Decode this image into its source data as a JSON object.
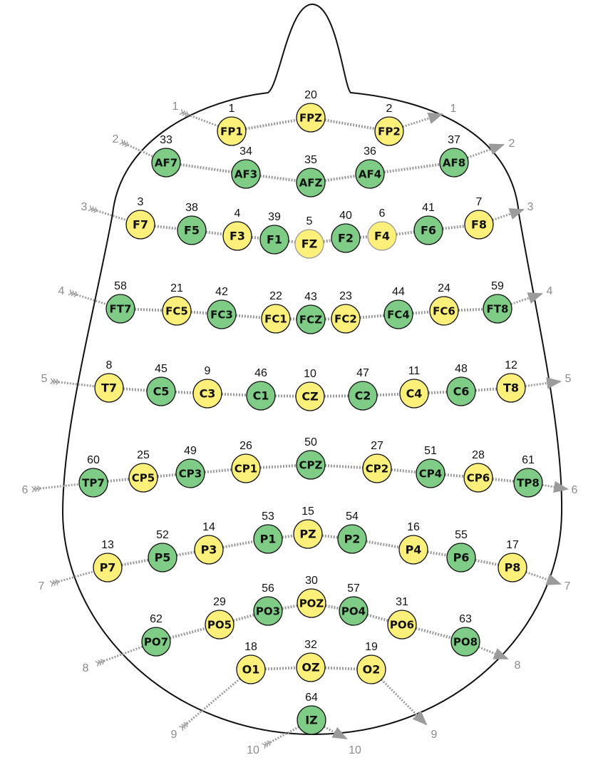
{
  "colors": {
    "yellow_fill": "#fdf07a",
    "green_fill": "#7fcc86",
    "outline": "#111111",
    "route_line": "#9b9b9b",
    "row_label": "#8c8c8c",
    "muted_outline": "#9b9b9b"
  },
  "electrodes": [
    {
      "label": "FP1",
      "number": "1",
      "color": "yellow"
    },
    {
      "label": "FPZ",
      "number": "20",
      "color": "yellow"
    },
    {
      "label": "FP2",
      "number": "2",
      "color": "yellow"
    },
    {
      "label": "AF7",
      "number": "33",
      "color": "green"
    },
    {
      "label": "AF3",
      "number": "34",
      "color": "green"
    },
    {
      "label": "AFZ",
      "number": "35",
      "color": "green"
    },
    {
      "label": "AF4",
      "number": "36",
      "color": "green"
    },
    {
      "label": "AF8",
      "number": "37",
      "color": "green"
    },
    {
      "label": "F7",
      "number": "3",
      "color": "yellow"
    },
    {
      "label": "F5",
      "number": "38",
      "color": "green"
    },
    {
      "label": "F3",
      "number": "4",
      "color": "yellow"
    },
    {
      "label": "F1",
      "number": "39",
      "color": "green"
    },
    {
      "label": "FZ",
      "number": "5",
      "color": "yellow",
      "muted": true
    },
    {
      "label": "F2",
      "number": "40",
      "color": "green"
    },
    {
      "label": "F4",
      "number": "6",
      "color": "yellow",
      "muted": true
    },
    {
      "label": "F6",
      "number": "41",
      "color": "green"
    },
    {
      "label": "F8",
      "number": "7",
      "color": "yellow"
    },
    {
      "label": "FT7",
      "number": "58",
      "color": "green"
    },
    {
      "label": "FC5",
      "number": "21",
      "color": "yellow"
    },
    {
      "label": "FC3",
      "number": "42",
      "color": "green"
    },
    {
      "label": "FC1",
      "number": "22",
      "color": "yellow"
    },
    {
      "label": "FCZ",
      "number": "43",
      "color": "green"
    },
    {
      "label": "FC2",
      "number": "23",
      "color": "yellow"
    },
    {
      "label": "FC4",
      "number": "44",
      "color": "green"
    },
    {
      "label": "FC6",
      "number": "24",
      "color": "yellow"
    },
    {
      "label": "FT8",
      "number": "59",
      "color": "green"
    },
    {
      "label": "T7",
      "number": "8",
      "color": "yellow"
    },
    {
      "label": "C5",
      "number": "45",
      "color": "green"
    },
    {
      "label": "C3",
      "number": "9",
      "color": "yellow"
    },
    {
      "label": "C1",
      "number": "46",
      "color": "green"
    },
    {
      "label": "CZ",
      "number": "10",
      "color": "yellow"
    },
    {
      "label": "C2",
      "number": "47",
      "color": "green"
    },
    {
      "label": "C4",
      "number": "11",
      "color": "yellow"
    },
    {
      "label": "C6",
      "number": "48",
      "color": "green"
    },
    {
      "label": "T8",
      "number": "12",
      "color": "yellow"
    },
    {
      "label": "TP7",
      "number": "60",
      "color": "green"
    },
    {
      "label": "CP5",
      "number": "25",
      "color": "yellow"
    },
    {
      "label": "CP3",
      "number": "49",
      "color": "green"
    },
    {
      "label": "CP1",
      "number": "26",
      "color": "yellow"
    },
    {
      "label": "CPZ",
      "number": "50",
      "color": "green"
    },
    {
      "label": "CP2",
      "number": "27",
      "color": "yellow"
    },
    {
      "label": "CP4",
      "number": "51",
      "color": "green"
    },
    {
      "label": "CP6",
      "number": "28",
      "color": "yellow"
    },
    {
      "label": "TP8",
      "number": "61",
      "color": "green"
    },
    {
      "label": "P7",
      "number": "13",
      "color": "yellow"
    },
    {
      "label": "P5",
      "number": "52",
      "color": "green"
    },
    {
      "label": "P3",
      "number": "14",
      "color": "yellow"
    },
    {
      "label": "P1",
      "number": "53",
      "color": "green"
    },
    {
      "label": "PZ",
      "number": "15",
      "color": "yellow"
    },
    {
      "label": "P2",
      "number": "54",
      "color": "green"
    },
    {
      "label": "P4",
      "number": "16",
      "color": "yellow"
    },
    {
      "label": "P6",
      "number": "55",
      "color": "green"
    },
    {
      "label": "P8",
      "number": "17",
      "color": "yellow"
    },
    {
      "label": "PO7",
      "number": "62",
      "color": "green"
    },
    {
      "label": "PO5",
      "number": "29",
      "color": "yellow"
    },
    {
      "label": "PO3",
      "number": "56",
      "color": "green"
    },
    {
      "label": "POZ",
      "number": "30",
      "color": "yellow"
    },
    {
      "label": "PO4",
      "number": "57",
      "color": "green"
    },
    {
      "label": "PO6",
      "number": "31",
      "color": "yellow"
    },
    {
      "label": "PO8",
      "number": "63",
      "color": "green"
    },
    {
      "label": "O1",
      "number": "18",
      "color": "yellow"
    },
    {
      "label": "OZ",
      "number": "32",
      "color": "yellow"
    },
    {
      "label": "O2",
      "number": "19",
      "color": "yellow"
    },
    {
      "label": "IZ",
      "number": "64",
      "color": "green"
    }
  ],
  "rows": [
    {
      "label": "1",
      "electrodes": [
        "FP1",
        "FPZ",
        "FP2"
      ]
    },
    {
      "label": "2",
      "electrodes": [
        "AF7",
        "AF3",
        "AFZ",
        "AF4",
        "AF8"
      ]
    },
    {
      "label": "3",
      "electrodes": [
        "F7",
        "F5",
        "F3",
        "F1",
        "FZ",
        "F2",
        "F4",
        "F6",
        "F8"
      ]
    },
    {
      "label": "4",
      "electrodes": [
        "FT7",
        "FC5",
        "FC3",
        "FC1",
        "FCZ",
        "FC2",
        "FC4",
        "FC6",
        "FT8"
      ]
    },
    {
      "label": "5",
      "electrodes": [
        "T7",
        "C5",
        "C3",
        "C1",
        "CZ",
        "C2",
        "C4",
        "C6",
        "T8"
      ]
    },
    {
      "label": "6",
      "electrodes": [
        "TP7",
        "CP5",
        "CP3",
        "CP1",
        "CPZ",
        "CP2",
        "CP4",
        "CP6",
        "TP8"
      ]
    },
    {
      "label": "7",
      "electrodes": [
        "P7",
        "P5",
        "P3",
        "P1",
        "PZ",
        "P2",
        "P4",
        "P6",
        "P8"
      ]
    },
    {
      "label": "8",
      "electrodes": [
        "PO7",
        "PO5",
        "PO3",
        "POZ",
        "PO4",
        "PO6",
        "PO8"
      ]
    },
    {
      "label": "9",
      "electrodes": [
        "O1",
        "OZ",
        "O2"
      ]
    },
    {
      "label": "10",
      "electrodes": [
        "IZ"
      ]
    }
  ]
}
